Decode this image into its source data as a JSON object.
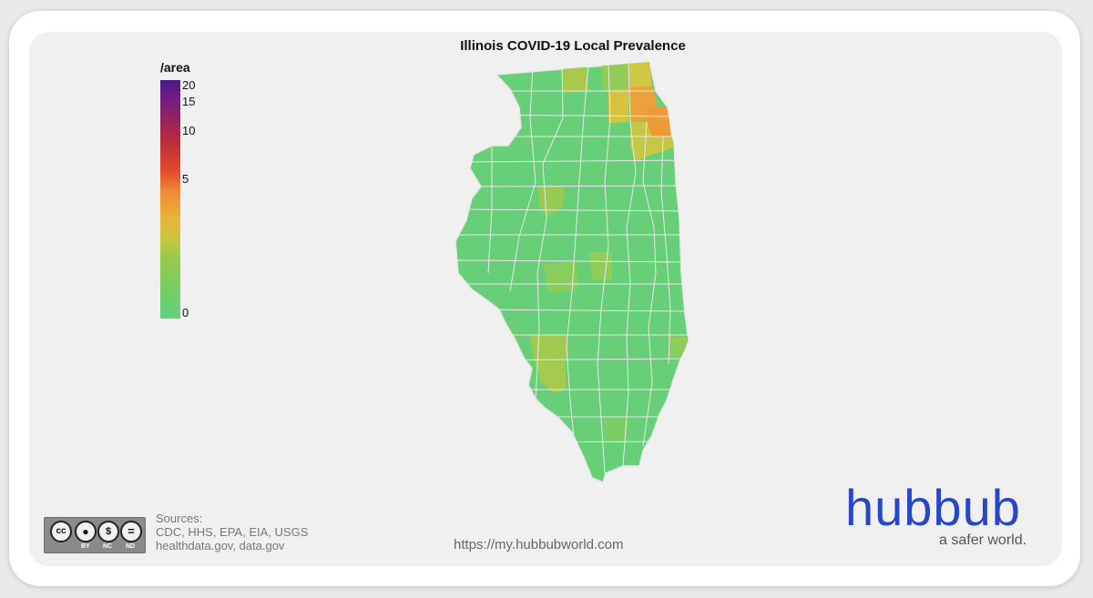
{
  "title": "Illinois COVID-19 Local Prevalence",
  "legend": {
    "title": "/area",
    "ticks": [
      {
        "label": "20",
        "value": 20
      },
      {
        "label": "15",
        "value": 15
      },
      {
        "label": "10",
        "value": 10
      },
      {
        "label": "5",
        "value": 5
      },
      {
        "label": "0",
        "value": 0
      }
    ],
    "colors": [
      "#4b1a8a",
      "#b82a3e",
      "#f08b34",
      "#c7c63f",
      "#62d07e"
    ]
  },
  "map": {
    "region": "Illinois",
    "base_color": "#68cf79",
    "border_color": "#e8e8e8"
  },
  "footer": {
    "license_badge": [
      "cc",
      "BY",
      "NC",
      "ND"
    ],
    "sources_heading": "Sources:",
    "sources_line1": "CDC, HHS, EPA, EIA, USGS",
    "sources_line2": "healthdata.gov, data.gov",
    "url": "https://my.hubbubworld.com",
    "brand": "hubbub",
    "tagline": "a safer world."
  }
}
